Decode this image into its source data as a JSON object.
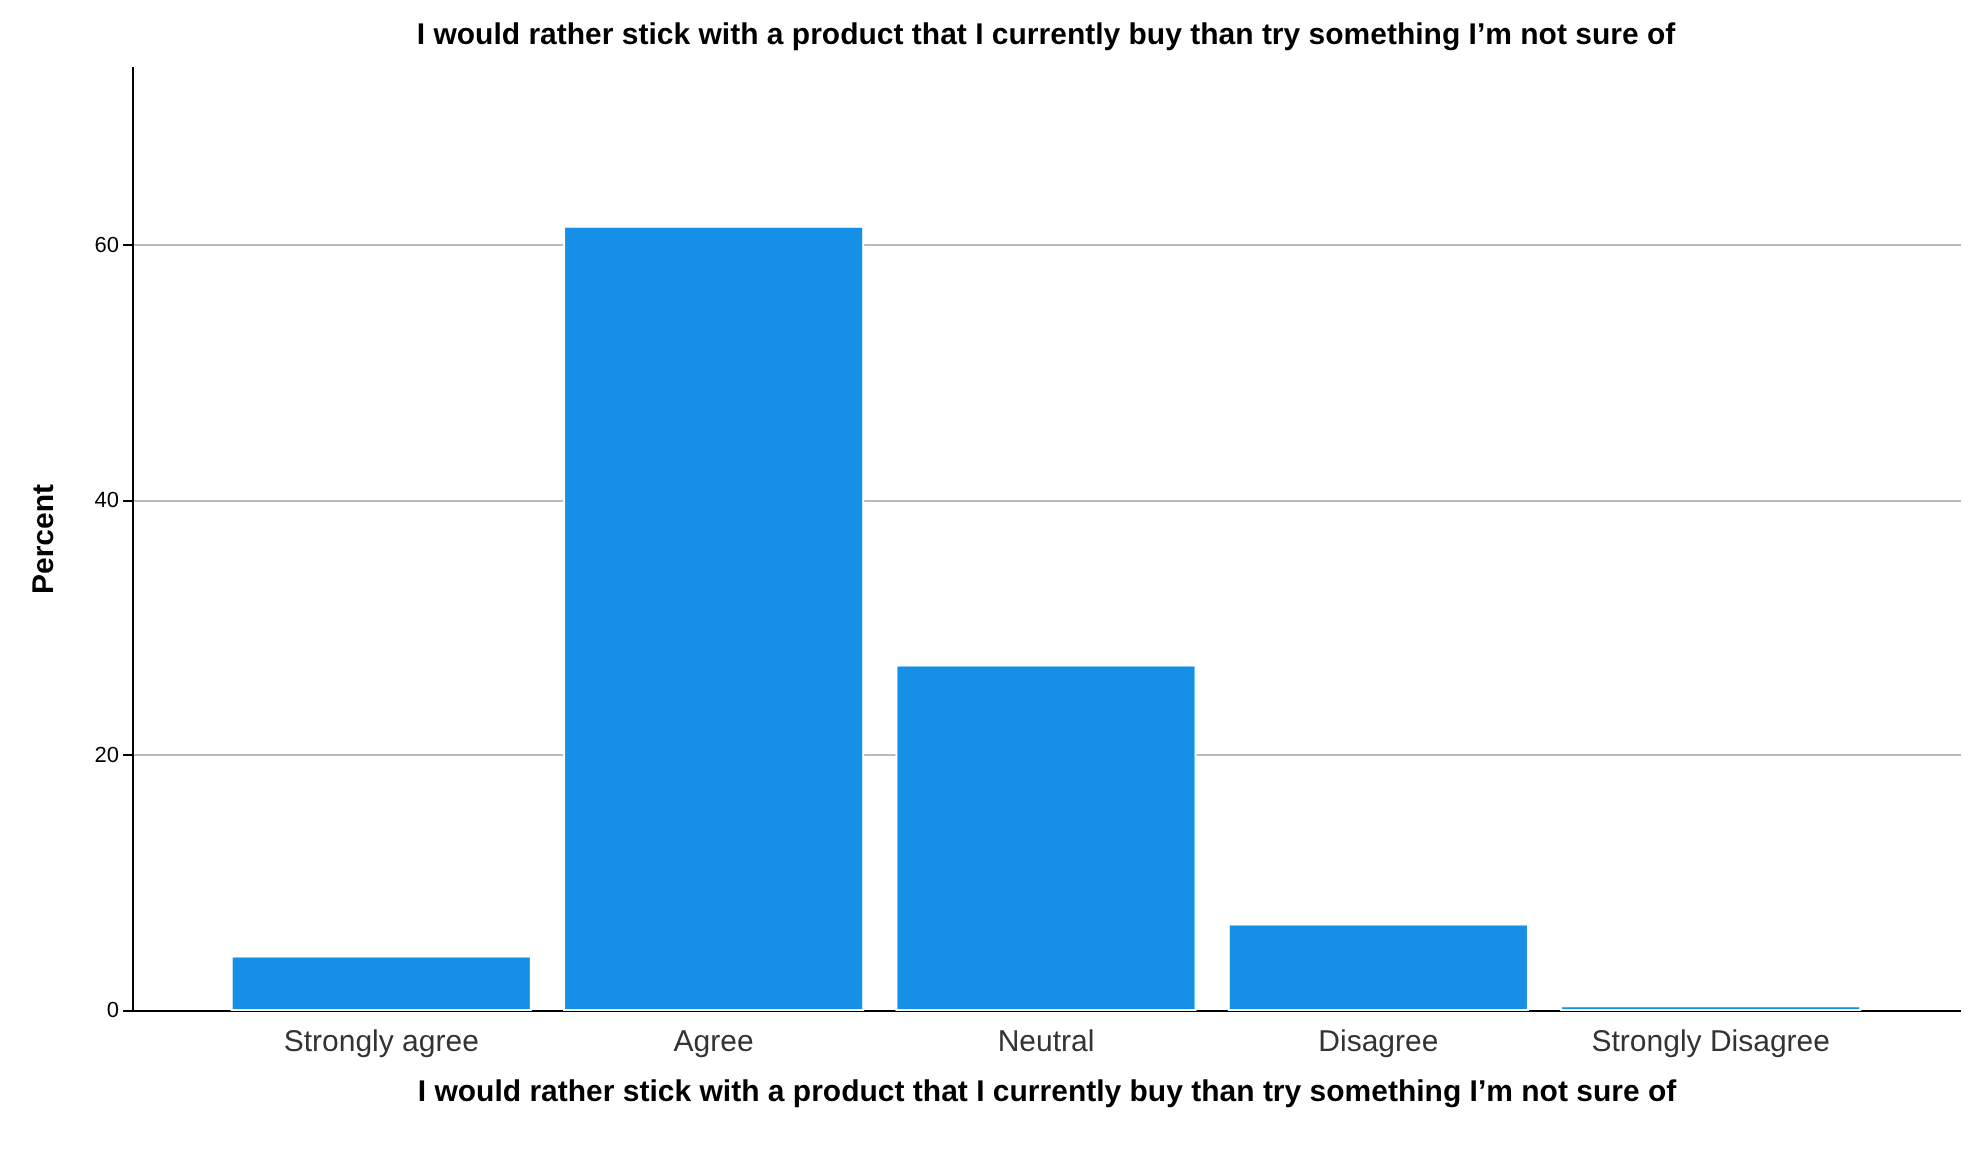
{
  "chart_data": {
    "type": "bar",
    "title": "I would rather stick with a product that I currently buy than try something I’m not sure of",
    "xlabel": "I would rather stick with a product that I currently buy than try something I’m not sure of",
    "ylabel": "Percent",
    "categories": [
      "Strongly agree",
      "Agree",
      "Neutral",
      "Disagree",
      "Strongly Disagree"
    ],
    "values": [
      4.2,
      61.4,
      27.0,
      6.7,
      0.3
    ],
    "color": "#1590e6",
    "ylim": [
      0,
      74
    ],
    "yticks": [
      0,
      20,
      40,
      60
    ],
    "grid": "y"
  }
}
